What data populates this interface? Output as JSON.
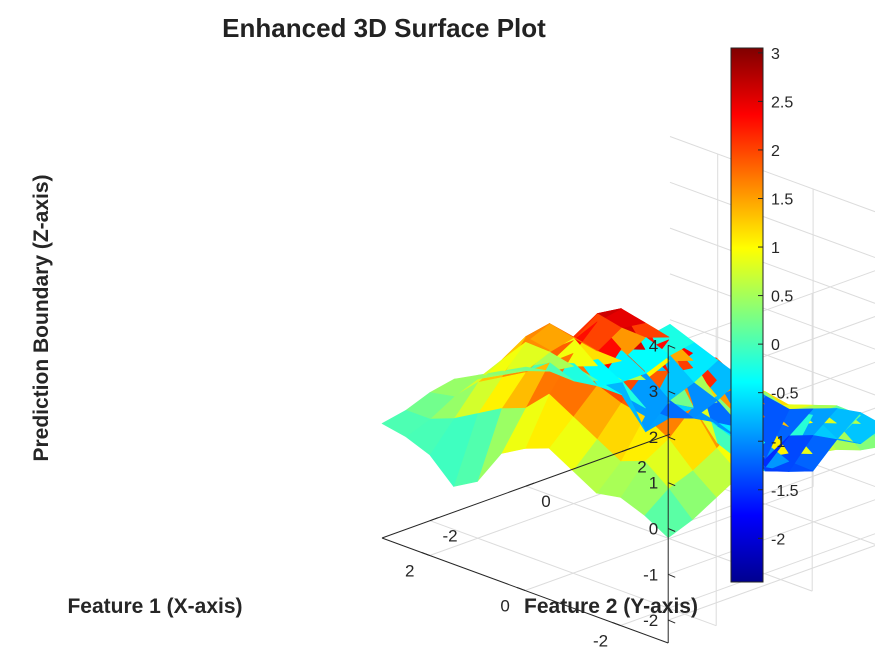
{
  "chart_data": {
    "type": "surface3d",
    "title": "Enhanced 3D Surface Plot",
    "xlabel": "Feature 1 (X-axis)",
    "ylabel": "Feature 2 (Y-axis)",
    "zlabel": "Prediction Boundary (Z-axis)",
    "xlim": [
      -3,
      3
    ],
    "ylim": [
      -3,
      3
    ],
    "zlim": [
      -2.5,
      4
    ],
    "xticks": [
      -2,
      0,
      2
    ],
    "xtick_labels": [
      "-2",
      "0",
      "2"
    ],
    "yticks": [
      -2,
      0,
      2
    ],
    "ytick_labels": [
      "-2",
      "0",
      "2"
    ],
    "zticks": [
      -2,
      -1,
      0,
      1,
      2,
      3,
      4
    ],
    "ztick_labels": [
      "-2",
      "-1",
      "0",
      "1",
      "2",
      "3",
      "4"
    ],
    "grid": true,
    "colormap": "jet",
    "colorbar": {
      "placement": "right",
      "limits": [
        -2.45,
        3.05
      ],
      "ticks": [
        -2,
        -1.5,
        -1,
        -0.5,
        0,
        0.5,
        1,
        1.5,
        2,
        2.5,
        3
      ],
      "tick_labels": [
        "-2",
        "-1.5",
        "-1",
        "-0.5",
        "0",
        "0.5",
        "1",
        "1.5",
        "2",
        "2.5",
        "3"
      ]
    },
    "x": [
      -3,
      -2.5,
      -2,
      -1.5,
      -1,
      -0.5,
      0,
      0.5,
      1,
      1.5,
      2,
      2.5,
      3
    ],
    "y": [
      -3,
      -2.5,
      -2,
      -1.5,
      -1,
      -0.5,
      0,
      0.5,
      1,
      1.5,
      2,
      2.5,
      3
    ],
    "z": [
      [
        -0.2,
        0.0,
        0.3,
        0.6,
        0.8,
        0.7,
        0.5,
        0.4,
        0.2,
        0.1,
        -0.3,
        -0.1,
        -0.2
      ],
      [
        0.1,
        0.5,
        0.7,
        1.0,
        1.4,
        1.3,
        0.9,
        0.8,
        0.6,
        0.4,
        0.1,
        -0.2,
        -0.1
      ],
      [
        0.3,
        0.9,
        1.2,
        1.7,
        2.1,
        1.9,
        1.2,
        1.0,
        0.8,
        0.6,
        0.2,
        -0.2,
        -0.4
      ],
      [
        0.2,
        0.7,
        1.5,
        2.3,
        2.5,
        2.2,
        1.4,
        1.1,
        0.5,
        0.2,
        -0.5,
        -0.8,
        -0.6
      ],
      [
        0.5,
        1.0,
        1.6,
        2.1,
        2.6,
        1.8,
        1.0,
        0.3,
        -0.4,
        -1.0,
        -1.4,
        -0.9,
        -0.5
      ],
      [
        0.8,
        1.3,
        1.8,
        2.4,
        2.2,
        1.5,
        0.6,
        -0.4,
        -1.0,
        -1.4,
        -1.6,
        -1.0,
        -0.6
      ],
      [
        0.6,
        1.6,
        2.3,
        2.8,
        2.9,
        2.4,
        1.9,
        1.2,
        0.1,
        -1.0,
        -1.7,
        -1.2,
        -0.8
      ],
      [
        0.3,
        1.1,
        1.9,
        2.2,
        2.6,
        2.1,
        1.7,
        1.0,
        -0.2,
        -0.8,
        -1.3,
        -1.9,
        -1.0
      ],
      [
        -0.5,
        0.9,
        1.5,
        1.8,
        1.9,
        1.4,
        1.0,
        0.4,
        -0.3,
        -0.6,
        -1.1,
        -1.4,
        -0.9
      ],
      [
        -0.8,
        0.6,
        1.2,
        1.9,
        2.0,
        1.5,
        0.7,
        0.2,
        -0.6,
        -1.0,
        -1.2,
        -1.0,
        -0.7
      ],
      [
        -0.3,
        0.3,
        0.9,
        1.2,
        1.4,
        1.0,
        0.5,
        0.0,
        -0.5,
        -1.5,
        -1.0,
        -0.8,
        -0.5
      ],
      [
        -0.1,
        0.1,
        0.4,
        0.6,
        0.5,
        0.4,
        0.2,
        -0.2,
        -0.5,
        -0.6,
        -0.6,
        -0.4,
        -0.3
      ],
      [
        0.0,
        0.1,
        0.3,
        0.4,
        0.3,
        0.2,
        0.1,
        0.0,
        -0.2,
        -0.3,
        -0.3,
        -0.2,
        -0.1
      ]
    ]
  }
}
